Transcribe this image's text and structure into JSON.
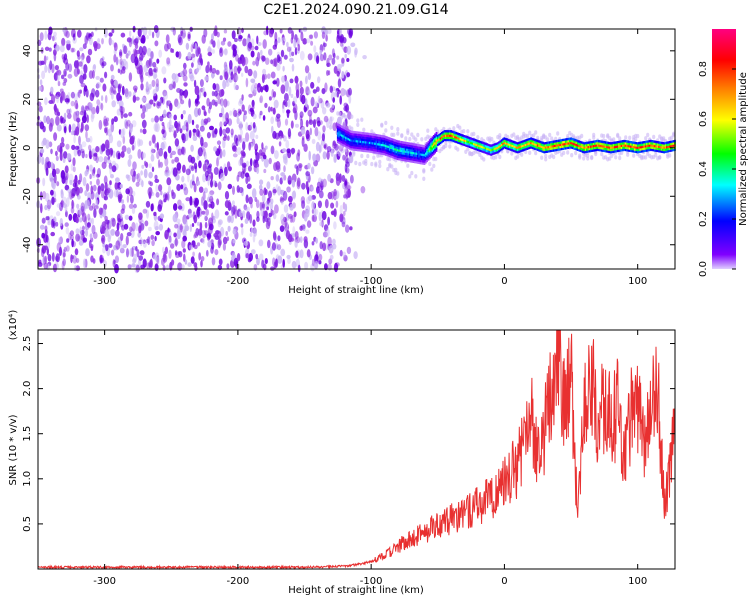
{
  "figure": {
    "title": "C2E1.2024.090.21.09.G14"
  },
  "colors": {
    "snr_line": "#e83030",
    "scatter_low": "#c9b4f5",
    "scatter_mid": "#8a2be2",
    "scatter_high": "#6a00e0",
    "background": "#ffffff"
  },
  "chart_data": [
    {
      "type": "heatmap",
      "xlabel": "Height of straight line (km)",
      "ylabel": "Frequency (Hz)",
      "xlim": [
        -350,
        128
      ],
      "ylim": [
        -50,
        49
      ],
      "xticks": [
        -300,
        -200,
        -100,
        0,
        100
      ],
      "yticks": [
        -40,
        -20,
        0,
        20,
        40
      ],
      "grid": false,
      "colorbar": {
        "label": "Normalized spectral amplitude",
        "range": [
          0.0,
          0.96
        ],
        "ticks": [
          "0.0",
          "0.2",
          "0.4",
          "0.6",
          "0.8"
        ],
        "colormap": [
          "#e0d0ff",
          "#8000ff",
          "#0000ff",
          "#00ffff",
          "#00ff00",
          "#ffff00",
          "#ff8000",
          "#ff0000",
          "#ff0080"
        ]
      },
      "noise_region": {
        "x_range": [
          -350,
          -115
        ],
        "freq_range": [
          -50,
          49
        ],
        "amplitude_range": [
          0.0,
          0.15
        ]
      },
      "signal_track": {
        "x": [
          -125,
          -115,
          -100,
          -90,
          -80,
          -70,
          -60,
          -55,
          -50,
          -45,
          -40,
          -35,
          -30,
          -25,
          -20,
          -15,
          -10,
          -5,
          0,
          5,
          10,
          15,
          20,
          30,
          40,
          50,
          60,
          70,
          80,
          90,
          100,
          110,
          120,
          128
        ],
        "frequency": [
          6,
          3,
          2,
          1,
          -1,
          -2,
          -3,
          0,
          3,
          5,
          5,
          4,
          3,
          2,
          1,
          0,
          -1,
          0,
          2,
          1,
          0,
          1,
          2,
          0,
          1,
          2,
          0,
          1,
          0,
          1,
          0,
          1,
          0,
          1
        ],
        "amplitude": [
          0.4,
          0.35,
          0.35,
          0.4,
          0.45,
          0.4,
          0.35,
          0.6,
          0.8,
          0.85,
          0.85,
          0.8,
          0.7,
          0.6,
          0.75,
          0.6,
          0.55,
          0.7,
          0.8,
          0.7,
          0.75,
          0.8,
          0.8,
          0.85,
          0.9,
          0.9,
          0.85,
          0.9,
          0.85,
          0.9,
          0.9,
          0.85,
          0.85,
          0.9
        ]
      }
    },
    {
      "type": "line",
      "xlabel": "Height of straight line (km)",
      "ylabel": "SNR (10 * v/v)",
      "y_multiplier": "(x10⁴)",
      "xlim": [
        -350,
        128
      ],
      "ylim": [
        0,
        2.65
      ],
      "xticks": [
        -300,
        -200,
        -100,
        0,
        100
      ],
      "yticks": [
        "0.5",
        "1.0",
        "1.5",
        "2.0",
        "2.5"
      ],
      "grid": false,
      "series": [
        {
          "x": [
            -350,
            -300,
            -250,
            -200,
            -150,
            -120,
            -110,
            -100,
            -90,
            -80,
            -70,
            -60,
            -50,
            -40,
            -30,
            -20,
            -10,
            0,
            10,
            15,
            20,
            25,
            30,
            35,
            40,
            45,
            50,
            55,
            60,
            65,
            70,
            75,
            80,
            85,
            90,
            95,
            100,
            105,
            110,
            115,
            120,
            125,
            128
          ],
          "y": [
            0.02,
            0.02,
            0.02,
            0.02,
            0.02,
            0.03,
            0.05,
            0.08,
            0.15,
            0.25,
            0.35,
            0.4,
            0.5,
            0.55,
            0.6,
            0.7,
            0.8,
            0.95,
            1.15,
            1.4,
            1.7,
            1.2,
            1.5,
            2.0,
            2.55,
            1.8,
            2.1,
            0.6,
            1.9,
            2.2,
            1.5,
            1.9,
            1.6,
            1.8,
            1.2,
            1.7,
            1.8,
            1.3,
            1.9,
            2.0,
            0.7,
            1.2,
            1.5
          ]
        }
      ]
    }
  ]
}
